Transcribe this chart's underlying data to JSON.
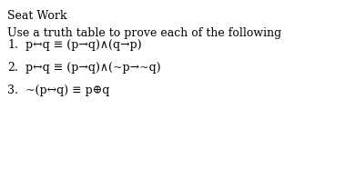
{
  "title": "Seat Work",
  "subtitle": "Use a truth table to prove each of the following",
  "line1_num": "1.",
  "line1_text": "p↔q ≡ (p→q)∧(q→p)",
  "line2_num": "2.",
  "line2_text": "p↔q ≡ (p→q)∧(~p→~q)",
  "line3_num": "3.",
  "line3_text": "~(p↔q) ≡ p⊕q",
  "bg_color": "#ffffff",
  "text_color": "#000000",
  "title_fontsize": 9.0,
  "subtitle_fontsize": 9.0,
  "item_fontsize": 9.0,
  "font_family": "DejaVu Serif"
}
